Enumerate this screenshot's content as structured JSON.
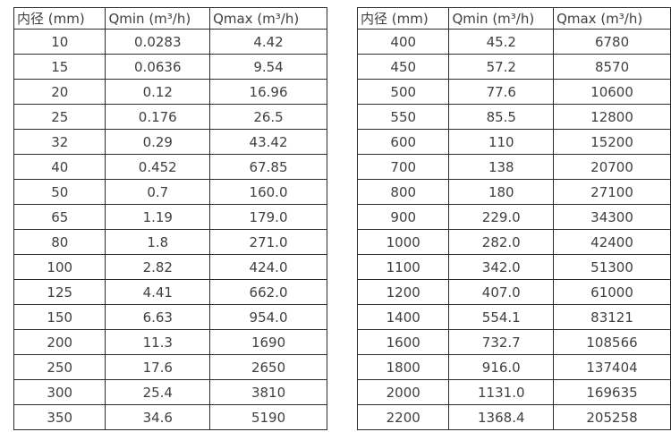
{
  "colors": {
    "background": "#ffffff",
    "border": "#2b2b2b",
    "text": "#404040"
  },
  "tables": [
    {
      "name": "flow-table-small-diameters",
      "headers": [
        "内径 (mm)",
        "Qmin (m³/h)",
        "Qmax (m³/h)"
      ],
      "header_names": [
        "diameter",
        "qmin",
        "qmax"
      ],
      "rows": [
        [
          "10",
          "0.0283",
          "4.42"
        ],
        [
          "15",
          "0.0636",
          "9.54"
        ],
        [
          "20",
          "0.12",
          "16.96"
        ],
        [
          "25",
          "0.176",
          "26.5"
        ],
        [
          "32",
          "0.29",
          "43.42"
        ],
        [
          "40",
          "0.452",
          "67.85"
        ],
        [
          "50",
          "0.7",
          "160.0"
        ],
        [
          "65",
          "1.19",
          "179.0"
        ],
        [
          "80",
          "1.8",
          "271.0"
        ],
        [
          "100",
          "2.82",
          "424.0"
        ],
        [
          "125",
          "4.41",
          "662.0"
        ],
        [
          "150",
          "6.63",
          "954.0"
        ],
        [
          "200",
          "11.3",
          "1690"
        ],
        [
          "250",
          "17.6",
          "2650"
        ],
        [
          "300",
          "25.4",
          "3810"
        ],
        [
          "350",
          "34.6",
          "5190"
        ]
      ]
    },
    {
      "name": "flow-table-large-diameters",
      "headers": [
        "内径 (mm)",
        "Qmin (m³/h)",
        "Qmax (m³/h)"
      ],
      "header_names": [
        "diameter",
        "qmin",
        "qmax"
      ],
      "rows": [
        [
          "400",
          "45.2",
          "6780"
        ],
        [
          "450",
          "57.2",
          "8570"
        ],
        [
          "500",
          "77.6",
          "10600"
        ],
        [
          "550",
          "85.5",
          "12800"
        ],
        [
          "600",
          "110",
          "15200"
        ],
        [
          "700",
          "138",
          "20700"
        ],
        [
          "800",
          "180",
          "27100"
        ],
        [
          "900",
          "229.0",
          "34300"
        ],
        [
          "1000",
          "282.0",
          "42400"
        ],
        [
          "1100",
          "342.0",
          "51300"
        ],
        [
          "1200",
          "407.0",
          "61000"
        ],
        [
          "1400",
          "554.1",
          "83121"
        ],
        [
          "1600",
          "732.7",
          "108566"
        ],
        [
          "1800",
          "916.0",
          "137404"
        ],
        [
          "2000",
          "1131.0",
          "169635"
        ],
        [
          "2200",
          "1368.4",
          "205258"
        ]
      ]
    }
  ]
}
